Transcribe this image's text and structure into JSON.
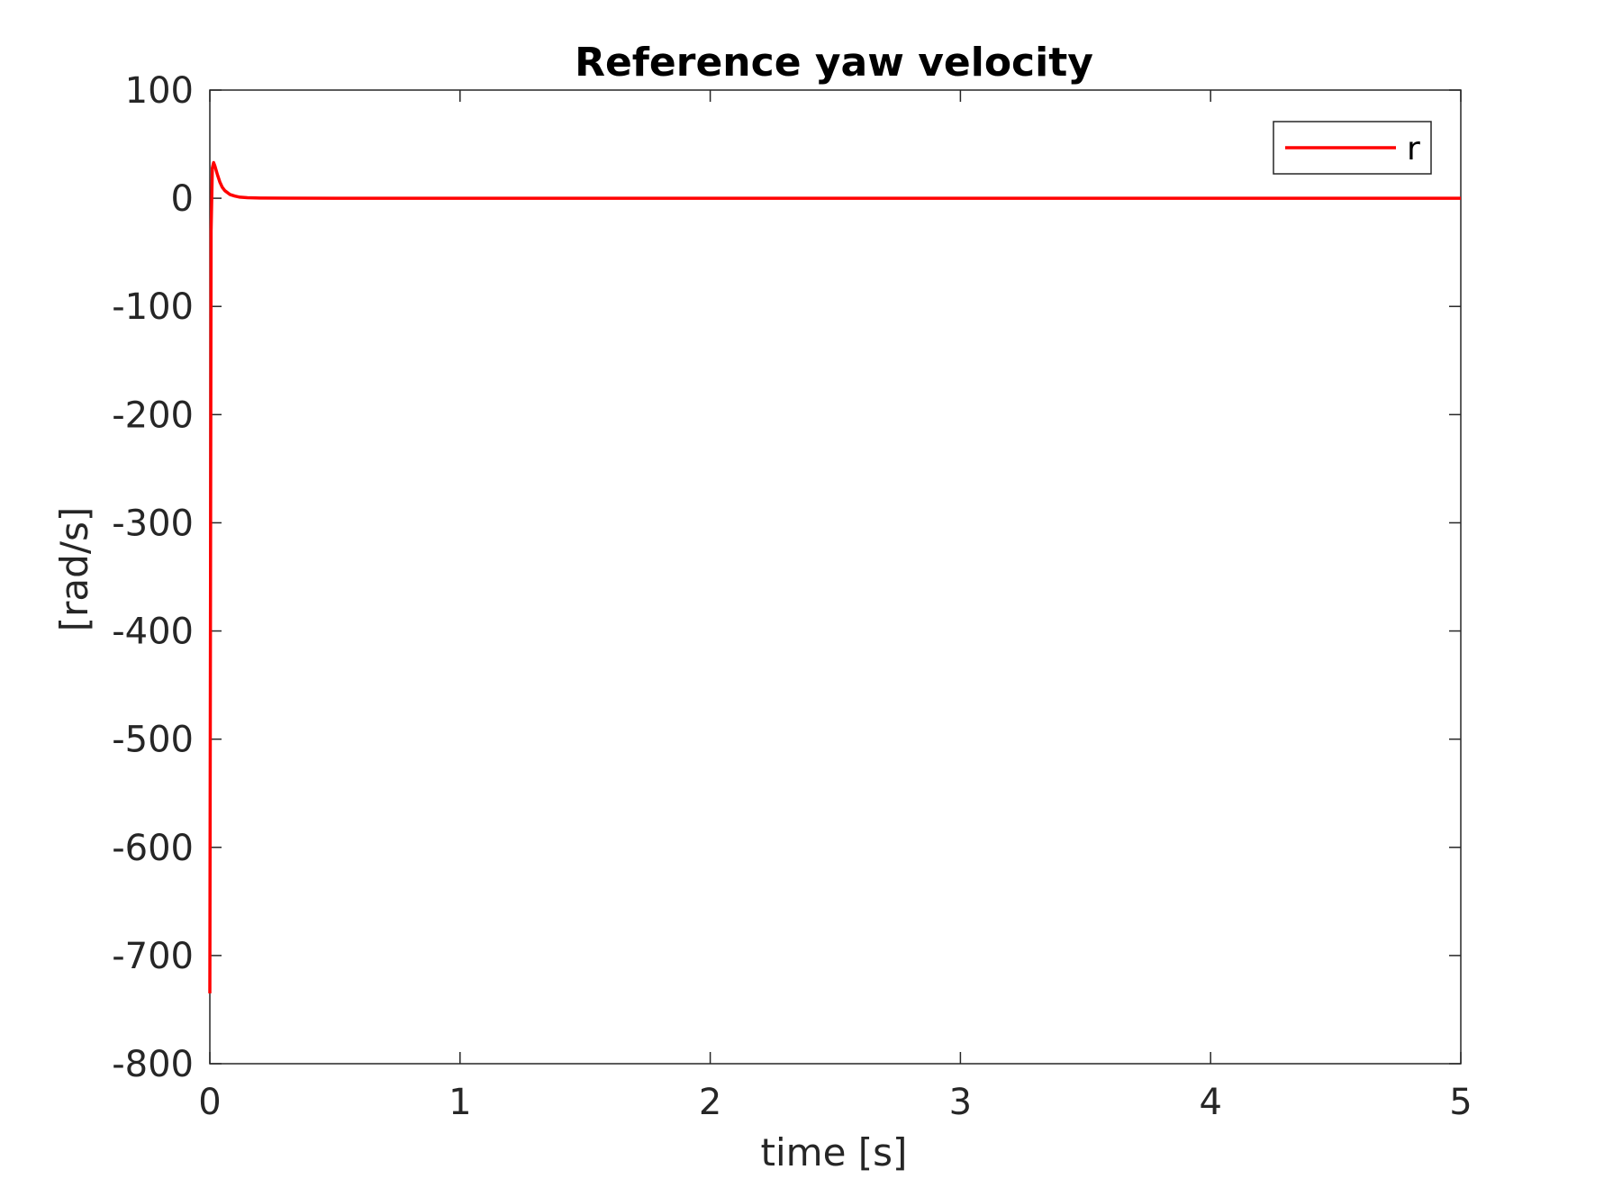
{
  "chart_data": {
    "type": "line",
    "title": "Reference yaw velocity",
    "xlabel": "time [s]",
    "ylabel": "[rad/s]",
    "xlim": [
      0,
      5
    ],
    "ylim": [
      -800,
      100
    ],
    "xticks": [
      0,
      1,
      2,
      3,
      4,
      5
    ],
    "yticks": [
      -800,
      -700,
      -600,
      -500,
      -400,
      -300,
      -200,
      -100,
      0,
      100
    ],
    "xtick_labels": [
      "0",
      "1",
      "2",
      "3",
      "4",
      "5"
    ],
    "ytick_labels": [
      "-800",
      "-700",
      "-600",
      "-500",
      "-400",
      "-300",
      "-200",
      "-100",
      "0",
      "100"
    ],
    "grid": false,
    "legend_position": "top-right",
    "series": [
      {
        "name": "r",
        "color": "#ff0000",
        "x": [
          0,
          0.005,
          0.01,
          0.015,
          0.02,
          0.03,
          0.04,
          0.05,
          0.06,
          0.08,
          0.1,
          0.12,
          0.15,
          0.2,
          0.3,
          0.5,
          1,
          2,
          3,
          4,
          5
        ],
        "y": [
          -735,
          -30,
          28,
          33,
          30,
          22,
          15,
          10,
          7,
          3.5,
          2,
          1,
          0.5,
          0.2,
          0.05,
          0,
          0,
          0,
          0,
          0,
          0
        ]
      }
    ]
  }
}
